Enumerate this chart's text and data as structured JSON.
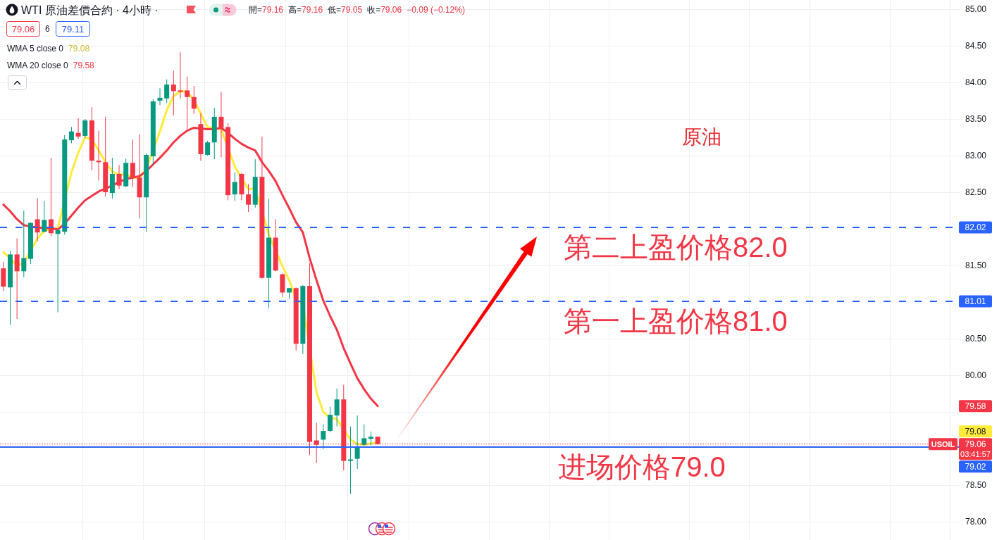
{
  "chart_data": {
    "type": "candlestick",
    "title": "WTI 原油差價合約 · 4小時 ·",
    "categories": [
      null,
      null,
      null,
      null,
      null,
      null,
      null,
      null,
      null,
      null,
      null,
      null,
      null,
      null,
      null,
      null,
      null,
      null,
      null,
      null,
      null,
      null,
      null,
      null,
      null,
      null,
      null,
      null,
      null,
      null,
      null,
      null,
      null,
      null,
      null,
      null,
      null,
      null,
      null,
      null,
      null,
      null,
      null,
      null,
      null,
      null,
      null,
      null,
      null,
      null,
      null,
      null,
      null,
      null,
      null,
      null,
      null,
      null,
      null,
      null,
      null,
      null,
      null,
      null,
      null,
      null,
      null,
      null,
      null,
      null,
      null,
      null,
      null,
      null,
      null,
      null,
      null,
      null,
      null,
      null,
      null,
      null,
      null,
      null,
      null,
      null,
      null,
      null,
      null,
      null,
      null,
      null,
      null,
      null,
      null,
      null,
      null,
      null,
      null,
      null,
      null,
      null,
      null,
      null,
      null,
      null,
      null,
      null,
      null,
      null,
      null,
      null,
      null,
      null,
      null,
      null,
      null,
      null,
      null,
      null,
      null,
      null,
      null,
      null,
      null,
      null,
      null,
      null,
      null,
      null,
      null,
      null,
      null,
      null,
      null,
      null,
      null,
      null,
      null,
      null,
      null
    ],
    "ohlc": [
      [
        81.46,
        81.55,
        81.15,
        81.21
      ],
      [
        81.2,
        81.7,
        80.69,
        81.65
      ],
      [
        81.65,
        81.87,
        80.77,
        81.42
      ],
      [
        81.42,
        82.25,
        81.34,
        81.6
      ],
      [
        81.59,
        82.09,
        81.52,
        82.08
      ],
      [
        82.13,
        82.42,
        81.83,
        81.95
      ],
      [
        81.96,
        82.38,
        81.95,
        82.12
      ],
      [
        82.13,
        82.97,
        81.9,
        81.94
      ],
      [
        81.93,
        82.0,
        80.86,
        81.98
      ],
      [
        81.96,
        83.28,
        81.92,
        83.22
      ],
      [
        83.21,
        83.39,
        83.17,
        83.33
      ],
      [
        83.31,
        83.51,
        83.23,
        83.26
      ],
      [
        83.27,
        83.5,
        83.24,
        83.48
      ],
      [
        83.48,
        83.66,
        82.8,
        82.93
      ],
      [
        82.93,
        83.34,
        82.66,
        82.91
      ],
      [
        82.91,
        83.53,
        82.44,
        82.5
      ],
      [
        82.49,
        82.97,
        82.41,
        82.75
      ],
      [
        82.75,
        82.87,
        82.54,
        82.59
      ],
      [
        82.58,
        82.96,
        82.57,
        82.9
      ],
      [
        82.9,
        83.22,
        82.57,
        82.7
      ],
      [
        82.7,
        83.29,
        82.14,
        82.43
      ],
      [
        82.43,
        83.03,
        81.96,
        83.01
      ],
      [
        82.99,
        83.77,
        82.88,
        83.74
      ],
      [
        83.75,
        83.92,
        83.69,
        83.79
      ],
      [
        83.78,
        84.04,
        83.72,
        83.97
      ],
      [
        83.97,
        84.16,
        83.55,
        83.88
      ],
      [
        83.89,
        84.41,
        83.78,
        83.87
      ],
      [
        83.89,
        84.08,
        83.36,
        83.8
      ],
      [
        83.8,
        83.95,
        83.57,
        83.64
      ],
      [
        83.43,
        83.58,
        82.93,
        83.02
      ],
      [
        83.01,
        83.2,
        83.0,
        83.18
      ],
      [
        83.18,
        83.65,
        82.95,
        83.53
      ],
      [
        83.53,
        83.87,
        82.98,
        83.38
      ],
      [
        83.39,
        83.44,
        82.39,
        82.46
      ],
      [
        82.47,
        82.77,
        82.38,
        82.64
      ],
      [
        82.75,
        82.76,
        82.39,
        82.47
      ],
      [
        82.47,
        82.61,
        82.23,
        82.33
      ],
      [
        82.33,
        82.95,
        82.29,
        82.71
      ],
      [
        82.71,
        83.26,
        81.32,
        81.33
      ],
      [
        81.33,
        82.41,
        80.92,
        81.88
      ],
      [
        81.88,
        82.13,
        81.42,
        81.43
      ],
      [
        81.38,
        81.39,
        81.07,
        81.13
      ],
      [
        81.13,
        81.19,
        81.04,
        81.19
      ],
      [
        81.19,
        81.2,
        80.34,
        80.43
      ],
      [
        80.43,
        81.23,
        80.29,
        81.22
      ],
      [
        81.22,
        81.53,
        78.91,
        79.09
      ],
      [
        79.11,
        79.35,
        78.8,
        79.05
      ],
      [
        79.12,
        79.33,
        78.99,
        79.24
      ],
      [
        79.24,
        79.57,
        79.22,
        79.46
      ],
      [
        79.45,
        79.82,
        79.3,
        79.67
      ],
      [
        79.67,
        79.87,
        78.7,
        78.83
      ],
      [
        78.83,
        79.3,
        78.38,
        78.85
      ],
      [
        78.86,
        79.45,
        78.72,
        79.03
      ],
      [
        79.05,
        79.33,
        79.04,
        79.14
      ],
      [
        79.13,
        79.23,
        79.04,
        79.16
      ],
      [
        79.16,
        79.16,
        79.05,
        79.06
      ],
      null,
      null,
      null,
      null,
      null,
      null,
      null,
      null,
      null,
      null,
      null,
      null,
      null,
      null,
      null,
      null,
      null,
      null,
      null,
      null,
      null,
      null,
      null,
      null,
      null,
      null,
      null,
      null,
      null,
      null,
      null,
      null,
      null,
      null,
      null,
      null,
      null,
      null,
      null,
      null,
      null,
      null,
      null,
      null,
      null,
      null,
      null,
      null,
      null,
      null,
      null,
      null,
      null,
      null,
      null,
      null,
      null,
      null,
      null,
      null,
      null,
      null,
      null,
      null,
      null,
      null,
      null,
      null,
      null,
      null,
      null,
      null,
      null,
      null,
      null,
      null,
      null,
      null,
      null,
      null,
      null,
      null,
      null,
      null,
      null
    ],
    "colors": [
      "#f23645",
      "#089981",
      "#f23645",
      "#089981",
      "#089981",
      "#f23645",
      "#089981",
      "#f23645",
      "#089981",
      "#089981",
      "#089981",
      "#f23645",
      "#089981",
      "#f23645",
      "#f23645",
      "#f23645",
      "#089981",
      "#f23645",
      "#089981",
      "#f23645",
      "#f23645",
      "#089981",
      "#089981",
      "#089981",
      "#089981",
      "#f23645",
      "#f23645",
      "#f23645",
      "#f23645",
      "#f23645",
      "#089981",
      "#089981",
      "#f23645",
      "#f23645",
      "#089981",
      "#f23645",
      "#f23645",
      "#089981",
      "#f23645",
      "#089981",
      "#f23645",
      "#f23645",
      "#089981",
      "#f23645",
      "#089981",
      "#f23645",
      "#f23645",
      "#089981",
      "#089981",
      "#089981",
      "#f23645",
      "#089981",
      "#089981",
      "#089981",
      "#089981",
      "#f23645",
      null,
      null,
      null,
      null,
      null,
      null,
      null,
      null,
      null,
      null,
      null,
      null,
      null,
      null,
      null,
      null,
      null,
      null,
      null,
      null,
      null,
      null,
      null,
      null,
      null,
      null,
      null,
      null,
      null,
      null,
      null,
      null,
      null,
      null,
      null,
      null,
      null,
      null,
      null,
      null,
      null,
      null,
      null,
      null,
      null,
      null,
      null,
      null,
      null,
      null,
      null,
      null,
      null,
      null,
      null,
      null,
      null,
      null,
      null,
      null,
      null,
      null,
      null,
      null,
      null,
      null,
      null,
      null,
      null,
      null,
      null,
      null,
      null,
      null,
      null,
      null,
      null,
      null,
      null,
      null,
      null,
      null,
      null,
      null,
      null
    ],
    "series": [
      {
        "type": "line",
        "color": "#ffeb3b",
        "values": [
          81.68,
          81.6,
          81.49,
          81.54,
          81.7,
          81.87,
          81.97,
          81.99,
          82.01,
          null,
          82.77,
          83.04,
          83.25,
          83.22,
          83.07,
          82.91,
          82.78,
          82.74,
          82.74,
          82.7,
          82.69,
          82.82,
          null,
          83.33,
          83.62,
          83.81,
          83.88,
          83.87,
          83.76,
          83.57,
          83.39,
          83.37,
          83.36,
          null,
          82.85,
          null,
          82.54,
          82.55,
          null,
          81.92,
          null,
          81.49,
          81.3,
          81.04,
          80.97,
          null,
          79.77,
          79.5,
          79.42,
          79.4,
          null,
          79.12,
          79.06,
          79.05,
          79.07,
          79.08,
          null,
          null,
          null,
          null,
          null,
          null,
          null,
          null,
          null,
          null,
          null,
          null,
          null,
          null,
          null,
          null,
          null,
          null,
          null,
          null,
          null,
          null,
          null,
          null,
          null,
          null,
          null,
          null,
          null,
          null,
          null,
          null,
          null,
          null,
          null,
          null,
          null,
          null,
          null,
          null,
          null,
          null,
          null,
          null,
          null,
          null,
          null,
          null,
          null,
          null,
          null,
          null,
          null,
          null,
          null,
          null,
          null,
          null,
          null,
          null,
          null,
          null,
          null,
          null,
          null,
          null,
          null,
          null,
          null,
          null,
          null,
          null,
          null,
          null,
          null,
          null,
          null,
          null,
          null,
          null,
          null,
          null,
          null,
          null,
          null
        ]
      },
      {
        "type": "line",
        "color": "#f23645",
        "values": [
          82.33,
          82.24,
          82.13,
          82.05,
          82.03,
          82.02,
          82.01,
          82.01,
          81.99,
          82.07,
          82.18,
          82.29,
          82.39,
          82.45,
          82.51,
          82.55,
          82.59,
          82.64,
          82.68,
          82.7,
          82.72,
          82.79,
          82.88,
          82.97,
          83.07,
          83.18,
          83.27,
          83.34,
          83.38,
          83.37,
          83.36,
          83.36,
          83.38,
          83.31,
          83.23,
          83.16,
          83.11,
          83.07,
          82.91,
          82.79,
          82.65,
          82.46,
          82.28,
          82.09,
          81.95,
          81.6,
          81.3,
          81.02,
          80.81,
          80.62,
          80.37,
          80.16,
          79.96,
          79.81,
          79.68,
          79.58,
          null,
          null,
          null,
          null,
          null,
          null,
          null,
          null,
          null,
          null,
          null,
          null,
          null,
          null,
          null,
          null,
          null,
          null,
          null,
          null,
          null,
          null,
          null,
          null,
          null,
          null,
          null,
          null,
          null,
          null,
          null,
          null,
          null,
          null,
          null,
          null,
          null,
          null,
          null,
          null,
          null,
          null,
          null,
          null,
          null,
          null,
          null,
          null,
          null,
          null,
          null,
          null,
          null,
          null,
          null,
          null,
          null,
          null,
          null,
          null,
          null,
          null,
          null,
          null,
          null,
          null,
          null,
          null,
          null,
          null,
          null,
          null,
          null,
          null,
          null,
          null,
          null,
          null,
          null,
          null,
          null,
          null,
          null,
          null,
          null
        ]
      }
    ],
    "ylim": [
      77.75,
      85.125
    ],
    "yticks": [
      {
        "value": 78,
        "label": "78.00"
      },
      {
        "value": 78.5,
        "label": "78.50"
      },
      {
        "value": 79.5,
        "label": null
      },
      {
        "value": 80,
        "label": "80.00"
      },
      {
        "value": 80.5,
        "label": "80.50"
      },
      {
        "value": 81.5,
        "label": "81.50"
      },
      {
        "value": 82.5,
        "label": "82.50"
      },
      {
        "value": 83,
        "label": "83.00"
      },
      {
        "value": 83.5,
        "label": "83.50"
      },
      {
        "value": 84,
        "label": "84.00"
      },
      {
        "value": 84.5,
        "label": "84.50"
      },
      {
        "value": 85,
        "label": "85.00"
      }
    ],
    "tick_labels": "y",
    "grid": true,
    "ref_lines": [
      {
        "axis": "y",
        "value": 82.02,
        "label": "82.02",
        "color": "#2962ff",
        "line_style": "dashed"
      },
      {
        "axis": "y",
        "value": 81.01,
        "label": "81.01",
        "color": "#2962ff",
        "line_style": "dashed"
      },
      {
        "axis": "y",
        "value": 79.06,
        "label": "79.06",
        "color": "#f23645",
        "line_style": "dotted"
      },
      {
        "axis": "y",
        "value": 79.02,
        "label": "79.02",
        "color": "#2962ff",
        "line_style": "solid"
      }
    ],
    "annotations": [
      "79.06",
      "6",
      "79.11",
      "開=79.16",
      "高=79.16",
      "低=79.05",
      "收=79.06",
      "−0.09 (−0.12%)",
      "原油",
      "第二上盈价格82.0",
      "第一上盈价格81.0",
      "进场价格79.0",
      "USOIL",
      "03:41:57",
      "WMA 5 close 0",
      "79.08",
      "WMA 20 close 0",
      "79.58",
      "79.58",
      "79.08"
    ]
  }
}
